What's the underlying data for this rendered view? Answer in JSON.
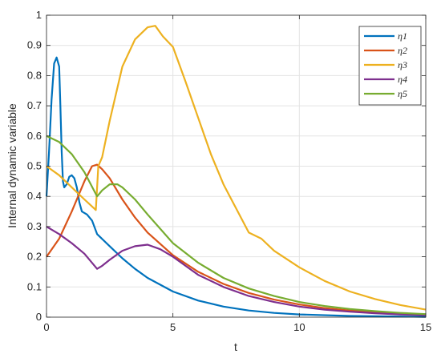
{
  "chart_data": {
    "type": "line",
    "xlabel": "t",
    "ylabel": "Internal dynamic variable",
    "xlim": [
      0,
      15
    ],
    "ylim": [
      0,
      1
    ],
    "x_ticks": [
      0,
      5,
      10,
      15
    ],
    "y_ticks": [
      0,
      0.1,
      0.2,
      0.3,
      0.4,
      0.5,
      0.6,
      0.7,
      0.8,
      0.9,
      1
    ],
    "grid": true,
    "legend": "top-right",
    "series": [
      {
        "name": "η1",
        "color": "#0072BD",
        "points": [
          [
            0,
            0.4
          ],
          [
            0.1,
            0.55
          ],
          [
            0.2,
            0.72
          ],
          [
            0.3,
            0.84
          ],
          [
            0.4,
            0.86
          ],
          [
            0.5,
            0.83
          ],
          [
            0.55,
            0.7
          ],
          [
            0.6,
            0.55
          ],
          [
            0.65,
            0.45
          ],
          [
            0.7,
            0.43
          ],
          [
            0.8,
            0.44
          ],
          [
            0.9,
            0.465
          ],
          [
            1.0,
            0.47
          ],
          [
            1.1,
            0.46
          ],
          [
            1.2,
            0.43
          ],
          [
            1.3,
            0.38
          ],
          [
            1.4,
            0.35
          ],
          [
            1.5,
            0.345
          ],
          [
            1.6,
            0.34
          ],
          [
            1.8,
            0.32
          ],
          [
            2.0,
            0.275
          ],
          [
            2.5,
            0.235
          ],
          [
            3,
            0.195
          ],
          [
            3.5,
            0.16
          ],
          [
            4,
            0.13
          ],
          [
            5,
            0.085
          ],
          [
            6,
            0.055
          ],
          [
            7,
            0.035
          ],
          [
            8,
            0.022
          ],
          [
            9,
            0.014
          ],
          [
            10,
            0.009
          ],
          [
            12,
            0.004
          ],
          [
            15,
            0.001
          ]
        ]
      },
      {
        "name": "η2",
        "color": "#D95319",
        "points": [
          [
            0,
            0.2
          ],
          [
            0.5,
            0.26
          ],
          [
            1.0,
            0.35
          ],
          [
            1.5,
            0.45
          ],
          [
            1.8,
            0.5
          ],
          [
            2.0,
            0.505
          ],
          [
            2.2,
            0.49
          ],
          [
            2.5,
            0.46
          ],
          [
            3,
            0.39
          ],
          [
            3.5,
            0.33
          ],
          [
            4,
            0.28
          ],
          [
            5,
            0.205
          ],
          [
            6,
            0.15
          ],
          [
            7,
            0.11
          ],
          [
            8,
            0.08
          ],
          [
            9,
            0.058
          ],
          [
            10,
            0.042
          ],
          [
            11,
            0.03
          ],
          [
            12,
            0.022
          ],
          [
            13,
            0.016
          ],
          [
            14,
            0.011
          ],
          [
            15,
            0.008
          ]
        ]
      },
      {
        "name": "η3",
        "color": "#EDB120",
        "points": [
          [
            0,
            0.5
          ],
          [
            0.5,
            0.47
          ],
          [
            1.0,
            0.43
          ],
          [
            1.5,
            0.39
          ],
          [
            1.95,
            0.355
          ],
          [
            2.05,
            0.5
          ],
          [
            2.2,
            0.53
          ],
          [
            2.5,
            0.65
          ],
          [
            3.0,
            0.83
          ],
          [
            3.5,
            0.92
          ],
          [
            4.0,
            0.96
          ],
          [
            4.3,
            0.965
          ],
          [
            4.6,
            0.93
          ],
          [
            5.0,
            0.895
          ],
          [
            5.5,
            0.78
          ],
          [
            6,
            0.66
          ],
          [
            6.5,
            0.54
          ],
          [
            7,
            0.44
          ],
          [
            7.5,
            0.36
          ],
          [
            8,
            0.28
          ],
          [
            8.5,
            0.26
          ],
          [
            9,
            0.22
          ],
          [
            10,
            0.165
          ],
          [
            11,
            0.12
          ],
          [
            12,
            0.085
          ],
          [
            13,
            0.06
          ],
          [
            14,
            0.04
          ],
          [
            15,
            0.025
          ]
        ]
      },
      {
        "name": "η4",
        "color": "#7E2F8E",
        "points": [
          [
            0,
            0.3
          ],
          [
            0.5,
            0.275
          ],
          [
            1.0,
            0.245
          ],
          [
            1.5,
            0.21
          ],
          [
            2.0,
            0.16
          ],
          [
            2.2,
            0.17
          ],
          [
            2.5,
            0.19
          ],
          [
            3,
            0.22
          ],
          [
            3.5,
            0.235
          ],
          [
            4,
            0.24
          ],
          [
            4.5,
            0.225
          ],
          [
            5,
            0.2
          ],
          [
            5.5,
            0.17
          ],
          [
            6,
            0.14
          ],
          [
            7,
            0.1
          ],
          [
            8,
            0.07
          ],
          [
            9,
            0.05
          ],
          [
            10,
            0.035
          ],
          [
            11,
            0.025
          ],
          [
            12,
            0.018
          ],
          [
            13,
            0.013
          ],
          [
            14,
            0.009
          ],
          [
            15,
            0.006
          ]
        ]
      },
      {
        "name": "η5",
        "color": "#77AC30",
        "points": [
          [
            0,
            0.6
          ],
          [
            0.5,
            0.58
          ],
          [
            1.0,
            0.54
          ],
          [
            1.5,
            0.48
          ],
          [
            2.0,
            0.4
          ],
          [
            2.2,
            0.42
          ],
          [
            2.5,
            0.44
          ],
          [
            2.8,
            0.44
          ],
          [
            3,
            0.43
          ],
          [
            3.5,
            0.39
          ],
          [
            4,
            0.34
          ],
          [
            5,
            0.245
          ],
          [
            6,
            0.18
          ],
          [
            7,
            0.13
          ],
          [
            8,
            0.095
          ],
          [
            9,
            0.07
          ],
          [
            10,
            0.05
          ],
          [
            11,
            0.037
          ],
          [
            12,
            0.027
          ],
          [
            13,
            0.02
          ],
          [
            14,
            0.014
          ],
          [
            15,
            0.01
          ]
        ]
      }
    ]
  }
}
